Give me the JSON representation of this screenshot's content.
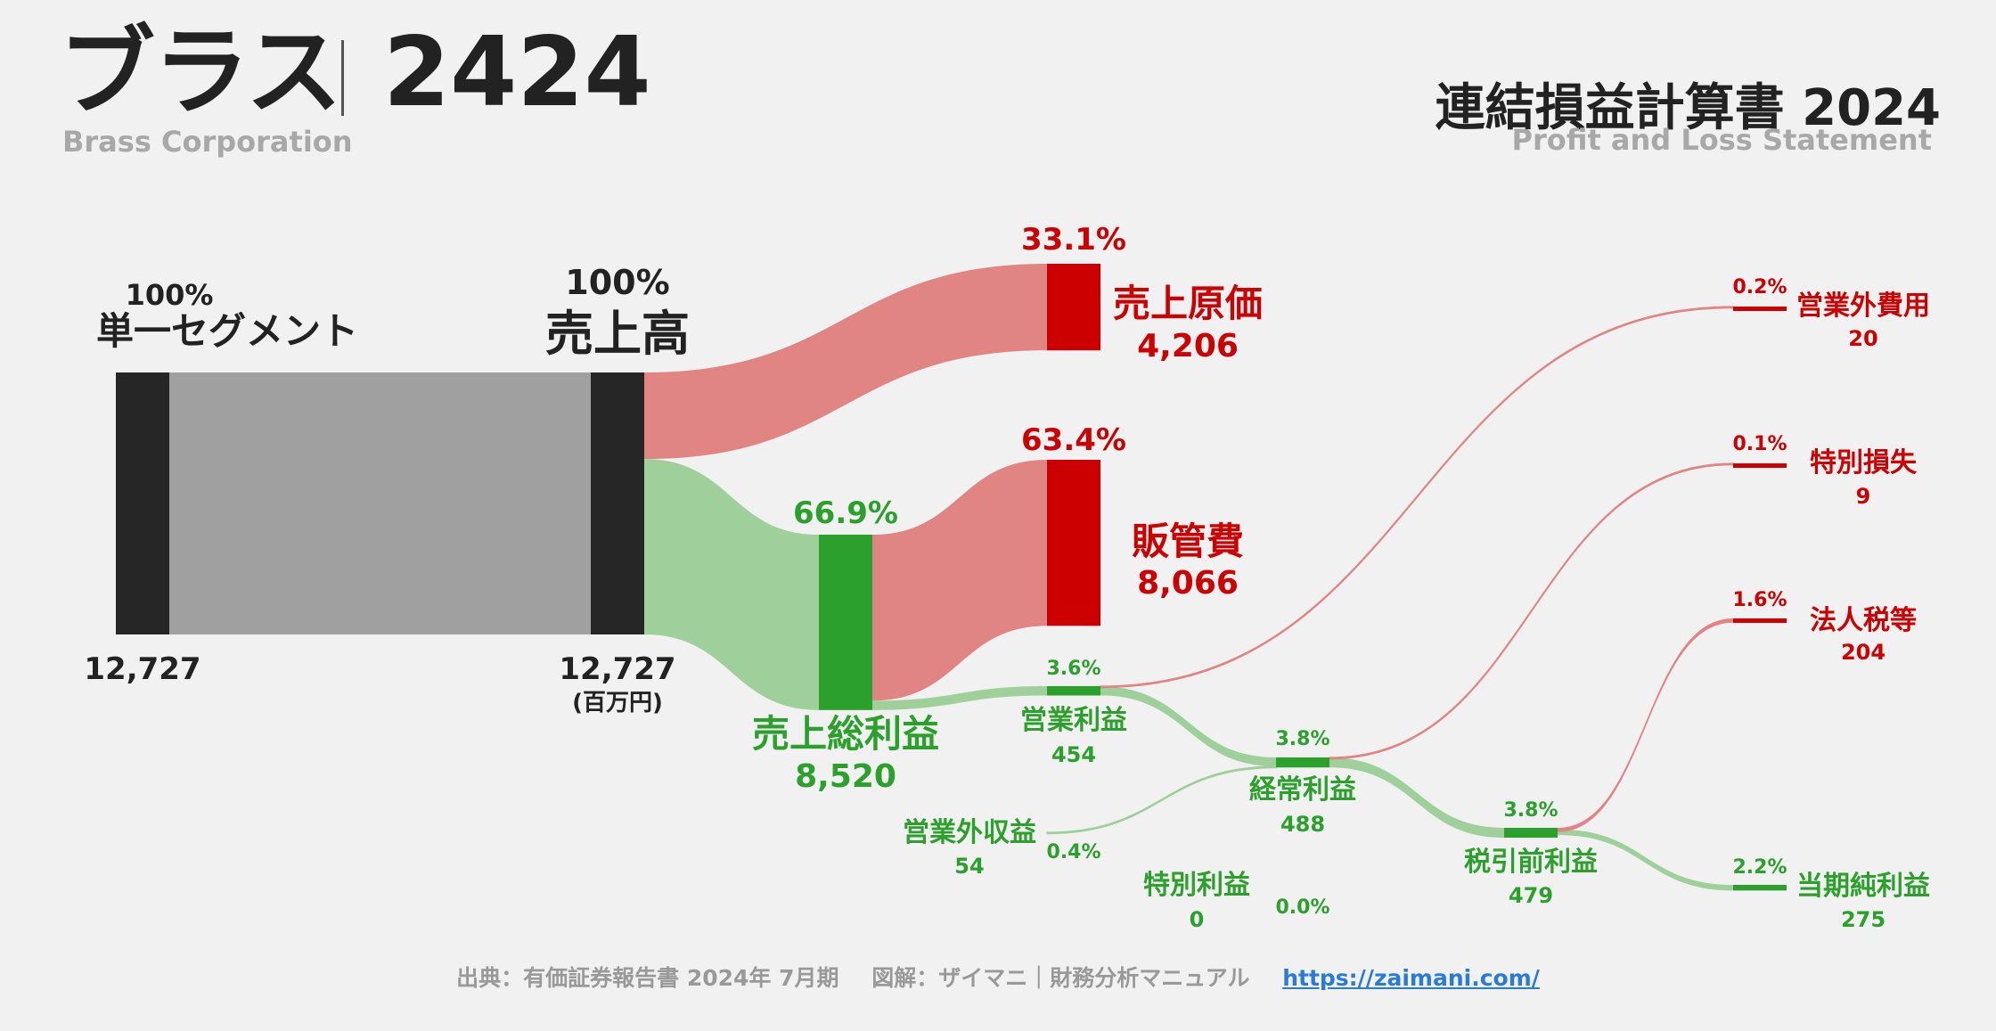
{
  "header": {
    "company_name": "ブラス",
    "ticker": "2424",
    "company_name_en": "Brass Corporation",
    "statement_title": "連結損益計算書 2024",
    "statement_title_en": "Profit and Loss Statement"
  },
  "footer": {
    "source": "出典：有価証券報告書 2024年 7月期",
    "credit": "図解：ザイマニ｜財務分析マニュアル",
    "url": "https://zaimani.com/"
  },
  "colors": {
    "cost_red": "#cc0000",
    "cost_flow": "#e08484",
    "profit_green": "#2ca02c",
    "profit_flow": "#9fcf9a",
    "revenue_gray": "#a0a0a0",
    "node_dark": "#262626"
  },
  "chart_data": {
    "type": "sankey",
    "unit_label": "(百万円)",
    "nodes": [
      {
        "id": "segment",
        "label": "単一セグメント",
        "value": 12727,
        "value_text": "12,727",
        "pct": "100%"
      },
      {
        "id": "revenue",
        "label": "売上高",
        "value": 12727,
        "value_text": "12,727",
        "pct": "100%"
      },
      {
        "id": "cogs",
        "label": "売上原価",
        "value": 4206,
        "value_text": "4,206",
        "pct": "33.1%"
      },
      {
        "id": "gross",
        "label": "売上総利益",
        "value": 8520,
        "value_text": "8,520",
        "pct": "66.9%"
      },
      {
        "id": "sga",
        "label": "販管費",
        "value": 8066,
        "value_text": "8,066",
        "pct": "63.4%"
      },
      {
        "id": "op",
        "label": "営業利益",
        "value": 454,
        "value_text": "454",
        "pct": "3.6%"
      },
      {
        "id": "nonop_inc",
        "label": "営業外収益",
        "value": 54,
        "value_text": "54",
        "pct": "0.4%"
      },
      {
        "id": "nonop_exp",
        "label": "営業外費用",
        "value": 20,
        "value_text": "20",
        "pct": "0.2%"
      },
      {
        "id": "ordinary",
        "label": "経常利益",
        "value": 488,
        "value_text": "488",
        "pct": "3.8%"
      },
      {
        "id": "sp_gain",
        "label": "特別利益",
        "value": 0,
        "value_text": "0",
        "pct": "0.0%"
      },
      {
        "id": "sp_loss",
        "label": "特別損失",
        "value": 9,
        "value_text": "9",
        "pct": "0.1%"
      },
      {
        "id": "pretax",
        "label": "税引前利益",
        "value": 479,
        "value_text": "479",
        "pct": "3.8%"
      },
      {
        "id": "tax",
        "label": "法人税等",
        "value": 204,
        "value_text": "204",
        "pct": "1.6%"
      },
      {
        "id": "net",
        "label": "当期純利益",
        "value": 275,
        "value_text": "275",
        "pct": "2.2%"
      }
    ],
    "links": [
      {
        "source": "segment",
        "target": "revenue",
        "value": 12727
      },
      {
        "source": "revenue",
        "target": "cogs",
        "value": 4206
      },
      {
        "source": "revenue",
        "target": "gross",
        "value": 8520
      },
      {
        "source": "gross",
        "target": "sga",
        "value": 8066
      },
      {
        "source": "gross",
        "target": "op",
        "value": 454
      },
      {
        "source": "op",
        "target": "ordinary",
        "value": 434
      },
      {
        "source": "op",
        "target": "nonop_exp",
        "value": 20
      },
      {
        "source": "nonop_inc",
        "target": "ordinary",
        "value": 54
      },
      {
        "source": "ordinary",
        "target": "pretax",
        "value": 479
      },
      {
        "source": "ordinary",
        "target": "sp_loss",
        "value": 9
      },
      {
        "source": "pretax",
        "target": "net",
        "value": 275
      },
      {
        "source": "pretax",
        "target": "tax",
        "value": 204
      }
    ]
  }
}
